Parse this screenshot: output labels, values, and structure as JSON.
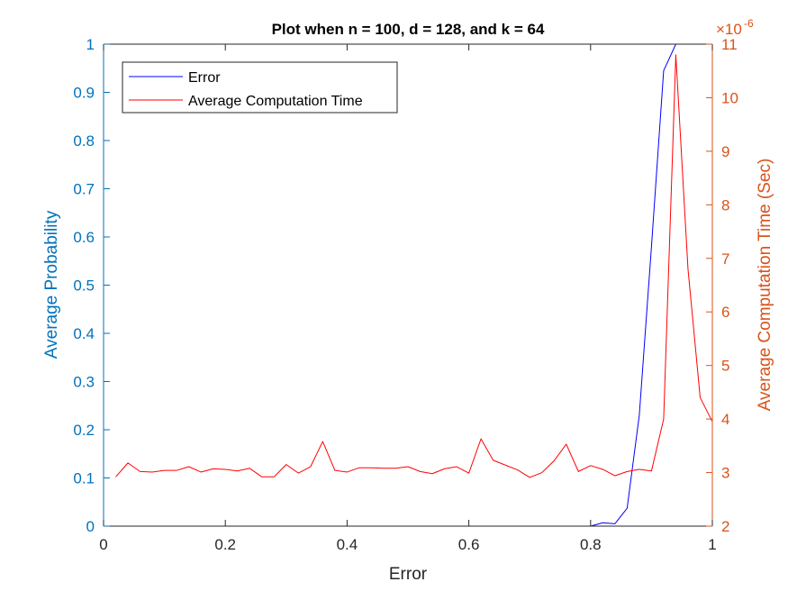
{
  "chart_data": {
    "type": "line",
    "title": "Plot when n = 100, d = 128, and k = 64",
    "xlabel": "Error",
    "ylabel_left": "Average Probability",
    "ylabel_right": "Average Computation Time (Sec)",
    "right_exponent_base": "×10",
    "right_exponent_power": "-6",
    "xlim": [
      0,
      1
    ],
    "ylim_left": [
      0,
      1
    ],
    "ylim_right": [
      2,
      11
    ],
    "x_ticks": [
      0,
      0.2,
      0.4,
      0.6,
      0.8,
      1
    ],
    "x_tick_labels": [
      "0",
      "0.2",
      "0.4",
      "0.6",
      "0.8",
      "1"
    ],
    "y_left_ticks": [
      0,
      0.1,
      0.2,
      0.3,
      0.4,
      0.5,
      0.6,
      0.7,
      0.8,
      0.9,
      1
    ],
    "y_left_tick_labels": [
      "0",
      "0.1",
      "0.2",
      "0.3",
      "0.4",
      "0.5",
      "0.6",
      "0.7",
      "0.8",
      "0.9",
      "1"
    ],
    "y_right_ticks": [
      2,
      3,
      4,
      5,
      6,
      7,
      8,
      9,
      10,
      11
    ],
    "y_right_tick_labels": [
      "2",
      "3",
      "4",
      "5",
      "6",
      "7",
      "8",
      "9",
      "10",
      "11"
    ],
    "legend_position": "top-left",
    "grid": false,
    "colors": {
      "left_axis": "#0072BD",
      "right_axis": "#D95319",
      "error_line": "#0000FF",
      "time_line": "#FF0000",
      "axis_text": "#262626"
    },
    "series": [
      {
        "name": "Error",
        "axis": "left",
        "color": "#0000FF",
        "x": [
          0.8,
          0.82,
          0.84,
          0.86,
          0.88,
          0.9,
          0.92,
          0.94,
          0.96,
          0.98,
          1.0
        ],
        "values": [
          0.0,
          0.007,
          0.005,
          0.037,
          0.23,
          0.58,
          0.945,
          1.0,
          1.0,
          1.0,
          1.0
        ]
      },
      {
        "name": "Average Computation Time",
        "axis": "right",
        "color": "#FF0000",
        "x": [
          0.02,
          0.04,
          0.06,
          0.08,
          0.1,
          0.12,
          0.14,
          0.16,
          0.18,
          0.2,
          0.22,
          0.24,
          0.26,
          0.28,
          0.3,
          0.32,
          0.34,
          0.36,
          0.38,
          0.4,
          0.42,
          0.44,
          0.46,
          0.48,
          0.5,
          0.52,
          0.54,
          0.56,
          0.58,
          0.6,
          0.62,
          0.64,
          0.66,
          0.68,
          0.7,
          0.72,
          0.74,
          0.76,
          0.78,
          0.8,
          0.82,
          0.84,
          0.86,
          0.88,
          0.9,
          0.92,
          0.94,
          0.96,
          0.98,
          1.0
        ],
        "values": [
          2.92,
          3.18,
          3.02,
          3.01,
          3.04,
          3.04,
          3.11,
          3.01,
          3.07,
          3.06,
          3.03,
          3.08,
          2.92,
          2.92,
          3.15,
          2.99,
          3.11,
          3.58,
          3.04,
          3.01,
          3.09,
          3.09,
          3.08,
          3.08,
          3.11,
          3.02,
          2.98,
          3.07,
          3.11,
          2.99,
          3.63,
          3.23,
          3.14,
          3.05,
          2.91,
          3.0,
          3.22,
          3.53,
          3.02,
          3.13,
          3.06,
          2.94,
          3.02,
          3.06,
          3.03,
          4.0,
          10.8,
          6.8,
          4.4,
          3.95
        ]
      }
    ]
  }
}
